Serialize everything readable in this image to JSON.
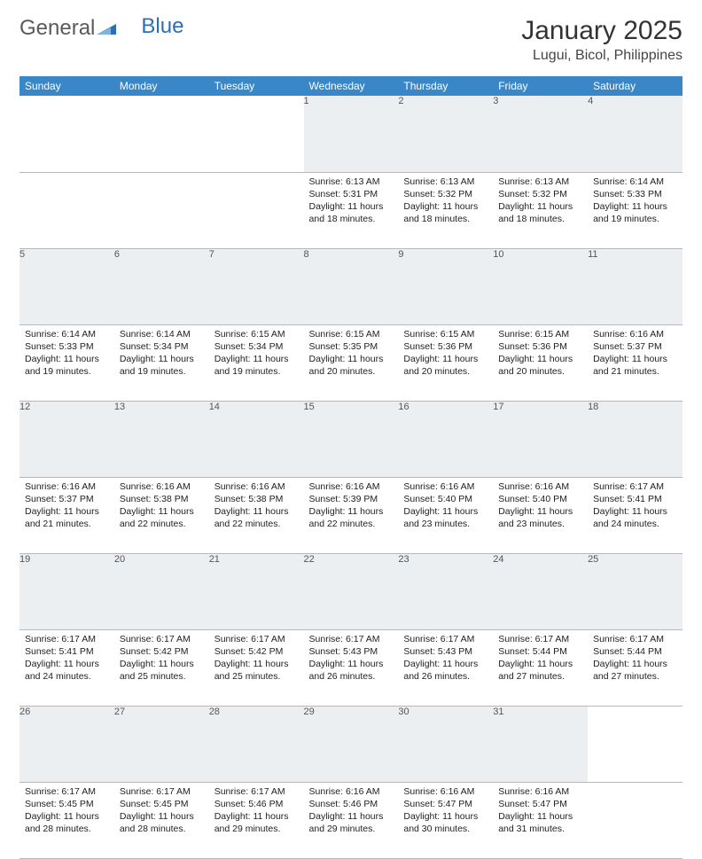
{
  "logo": {
    "text1": "General",
    "text2": "Blue"
  },
  "title": "January 2025",
  "location": "Lugui, Bicol, Philippines",
  "colors": {
    "header_bg": "#3a87c8",
    "header_text": "#ffffff",
    "daynum_bg": "#eceff1",
    "row_border": "#b8b8b8",
    "body_text": "#222222",
    "logo_gray": "#5a5a5a",
    "logo_blue": "#2d6fb5"
  },
  "weekdays": [
    "Sunday",
    "Monday",
    "Tuesday",
    "Wednesday",
    "Thursday",
    "Friday",
    "Saturday"
  ],
  "weeks": [
    {
      "nums": [
        "",
        "",
        "",
        "1",
        "2",
        "3",
        "4"
      ],
      "cells": [
        null,
        null,
        null,
        {
          "sunrise": "6:13 AM",
          "sunset": "5:31 PM",
          "dl_h": 11,
          "dl_m": 18
        },
        {
          "sunrise": "6:13 AM",
          "sunset": "5:32 PM",
          "dl_h": 11,
          "dl_m": 18
        },
        {
          "sunrise": "6:13 AM",
          "sunset": "5:32 PM",
          "dl_h": 11,
          "dl_m": 18
        },
        {
          "sunrise": "6:14 AM",
          "sunset": "5:33 PM",
          "dl_h": 11,
          "dl_m": 19
        }
      ]
    },
    {
      "nums": [
        "5",
        "6",
        "7",
        "8",
        "9",
        "10",
        "11"
      ],
      "cells": [
        {
          "sunrise": "6:14 AM",
          "sunset": "5:33 PM",
          "dl_h": 11,
          "dl_m": 19
        },
        {
          "sunrise": "6:14 AM",
          "sunset": "5:34 PM",
          "dl_h": 11,
          "dl_m": 19
        },
        {
          "sunrise": "6:15 AM",
          "sunset": "5:34 PM",
          "dl_h": 11,
          "dl_m": 19
        },
        {
          "sunrise": "6:15 AM",
          "sunset": "5:35 PM",
          "dl_h": 11,
          "dl_m": 20
        },
        {
          "sunrise": "6:15 AM",
          "sunset": "5:36 PM",
          "dl_h": 11,
          "dl_m": 20
        },
        {
          "sunrise": "6:15 AM",
          "sunset": "5:36 PM",
          "dl_h": 11,
          "dl_m": 20
        },
        {
          "sunrise": "6:16 AM",
          "sunset": "5:37 PM",
          "dl_h": 11,
          "dl_m": 21
        }
      ]
    },
    {
      "nums": [
        "12",
        "13",
        "14",
        "15",
        "16",
        "17",
        "18"
      ],
      "cells": [
        {
          "sunrise": "6:16 AM",
          "sunset": "5:37 PM",
          "dl_h": 11,
          "dl_m": 21
        },
        {
          "sunrise": "6:16 AM",
          "sunset": "5:38 PM",
          "dl_h": 11,
          "dl_m": 22
        },
        {
          "sunrise": "6:16 AM",
          "sunset": "5:38 PM",
          "dl_h": 11,
          "dl_m": 22
        },
        {
          "sunrise": "6:16 AM",
          "sunset": "5:39 PM",
          "dl_h": 11,
          "dl_m": 22
        },
        {
          "sunrise": "6:16 AM",
          "sunset": "5:40 PM",
          "dl_h": 11,
          "dl_m": 23
        },
        {
          "sunrise": "6:16 AM",
          "sunset": "5:40 PM",
          "dl_h": 11,
          "dl_m": 23
        },
        {
          "sunrise": "6:17 AM",
          "sunset": "5:41 PM",
          "dl_h": 11,
          "dl_m": 24
        }
      ]
    },
    {
      "nums": [
        "19",
        "20",
        "21",
        "22",
        "23",
        "24",
        "25"
      ],
      "cells": [
        {
          "sunrise": "6:17 AM",
          "sunset": "5:41 PM",
          "dl_h": 11,
          "dl_m": 24
        },
        {
          "sunrise": "6:17 AM",
          "sunset": "5:42 PM",
          "dl_h": 11,
          "dl_m": 25
        },
        {
          "sunrise": "6:17 AM",
          "sunset": "5:42 PM",
          "dl_h": 11,
          "dl_m": 25
        },
        {
          "sunrise": "6:17 AM",
          "sunset": "5:43 PM",
          "dl_h": 11,
          "dl_m": 26
        },
        {
          "sunrise": "6:17 AM",
          "sunset": "5:43 PM",
          "dl_h": 11,
          "dl_m": 26
        },
        {
          "sunrise": "6:17 AM",
          "sunset": "5:44 PM",
          "dl_h": 11,
          "dl_m": 27
        },
        {
          "sunrise": "6:17 AM",
          "sunset": "5:44 PM",
          "dl_h": 11,
          "dl_m": 27
        }
      ]
    },
    {
      "nums": [
        "26",
        "27",
        "28",
        "29",
        "30",
        "31",
        ""
      ],
      "cells": [
        {
          "sunrise": "6:17 AM",
          "sunset": "5:45 PM",
          "dl_h": 11,
          "dl_m": 28
        },
        {
          "sunrise": "6:17 AM",
          "sunset": "5:45 PM",
          "dl_h": 11,
          "dl_m": 28
        },
        {
          "sunrise": "6:17 AM",
          "sunset": "5:46 PM",
          "dl_h": 11,
          "dl_m": 29
        },
        {
          "sunrise": "6:16 AM",
          "sunset": "5:46 PM",
          "dl_h": 11,
          "dl_m": 29
        },
        {
          "sunrise": "6:16 AM",
          "sunset": "5:47 PM",
          "dl_h": 11,
          "dl_m": 30
        },
        {
          "sunrise": "6:16 AM",
          "sunset": "5:47 PM",
          "dl_h": 11,
          "dl_m": 31
        },
        null
      ]
    }
  ],
  "labels": {
    "sunrise": "Sunrise:",
    "sunset": "Sunset:",
    "daylight": "Daylight:",
    "hours": "hours",
    "and": "and",
    "minutes": "minutes."
  }
}
